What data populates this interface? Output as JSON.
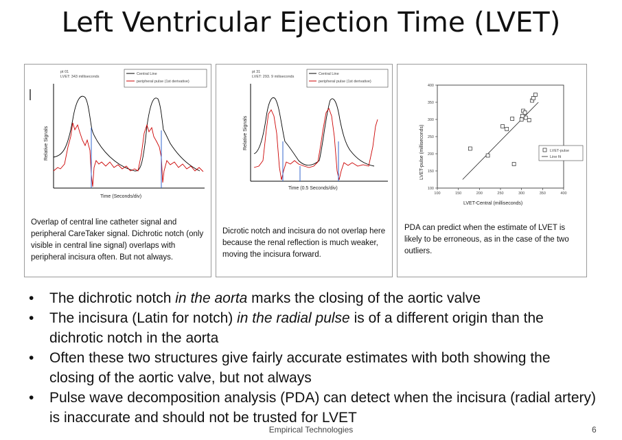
{
  "title": "Left Ventricular Ejection Time (LVET)",
  "panels": [
    {
      "plot_title": "pt 01",
      "plot_subtitle": "LVET: 343 milliseconds",
      "legend": [
        "Central Line",
        "peripheral pulse (1st derivative)"
      ],
      "ylabel": "Relative Signals",
      "xlabel": "Time (Seconds/div)",
      "caption": "Overlap of central line catheter signal and peripheral CareTaker signal. Dichrotic notch (only visible in central line signal) overlaps with peripheral incisura often. But not always."
    },
    {
      "plot_title": "pt 31",
      "plot_subtitle": "LVET: 293. 9 miliseconds",
      "legend": [
        "Central Line",
        "peripheral pulse (1st derivative)"
      ],
      "ylabel": "Relative Signals",
      "xlabel": "Time (0.5 Seconds/div)",
      "caption": "Dicrotic notch and incisura do not overlap here because the renal reflection is much weaker, moving the incisura forward."
    },
    {
      "legend": [
        "LVET-pulse",
        "Line fit"
      ],
      "ylabel": "LVET-pulse (milliseconds)",
      "xlabel": "LVET-Central (milliseconds)",
      "yticks": [
        "100",
        "150",
        "200",
        "250",
        "300",
        "350",
        "400"
      ],
      "xticks": [
        "100",
        "150",
        "200",
        "250",
        "300",
        "350",
        "400"
      ],
      "caption": "PDA can predict when the estimate of LVET is likely to be erroneous, as in the case of the two outliers."
    }
  ],
  "chart_data": {
    "type": "scatter",
    "xlabel": "LVET-Central (milliseconds)",
    "ylabel": "LVET-pulse (milliseconds)",
    "xlim": [
      100,
      400
    ],
    "ylim": [
      100,
      400
    ],
    "series": [
      {
        "name": "LVET-pulse",
        "points": [
          [
            178,
            215
          ],
          [
            220,
            195
          ],
          [
            255,
            280
          ],
          [
            265,
            272
          ],
          [
            278,
            302
          ],
          [
            282,
            170
          ],
          [
            300,
            300
          ],
          [
            302,
            310
          ],
          [
            304,
            325
          ],
          [
            308,
            320
          ],
          [
            310,
            305
          ],
          [
            318,
            298
          ],
          [
            325,
            355
          ],
          [
            328,
            362
          ],
          [
            333,
            372
          ]
        ]
      },
      {
        "name": "Line fit",
        "points": [
          [
            160,
            125
          ],
          [
            340,
            350
          ]
        ]
      }
    ]
  },
  "bullets": [
    [
      "The dichrotic notch ",
      "in the aorta",
      " marks the closing of the aortic valve"
    ],
    [
      "The incisura (Latin for notch) ",
      "in the radial pulse",
      " is of a different origin than the dichrotic notch in the aorta"
    ],
    [
      "Often these two structures give fairly accurate estimates with both showing the closing of the aortic valve, but not always",
      "",
      ""
    ],
    [
      "Pulse wave decomposition analysis (PDA) can detect when the incisura (radial artery) is inaccurate and should not be trusted for LVET",
      "",
      ""
    ]
  ],
  "footer": "Empirical Technologies",
  "page_number": "6"
}
